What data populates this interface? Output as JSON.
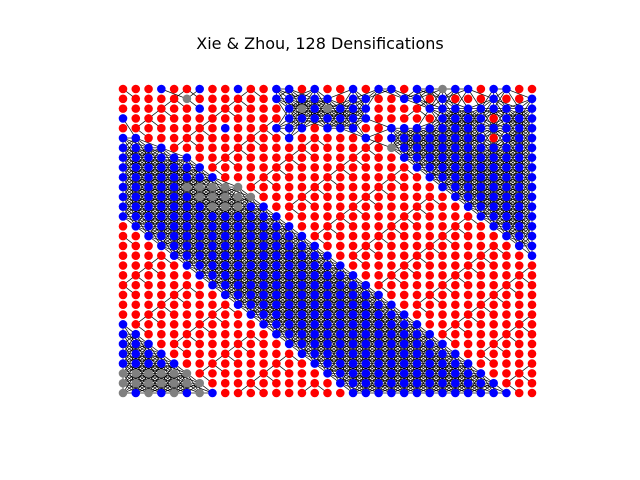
{
  "title": "Xie & Zhou, 128 Densifications",
  "graph": {
    "grid_columns": 33,
    "grid_rows": 32,
    "node_colors": {
      "red": "#ff0000",
      "blue": "#0000ff",
      "gray": "#808080"
    },
    "edge_color": "#000000",
    "node_color_rows": [
      "RRRBRRBRRBRRBBRBRRBRBBRBBGBBRBBRR",
      "RRRRRGRRRRRRBBBBBRBBRRBBRBRRRBRRB",
      "RRRRRRBRRRRRRBGBGBBBRRRRBBBBBBBBB",
      "BRRRRRRRRRRRRBBBBBBBRRRRRBBBBRBBB",
      "RRRRRRRRBRRRBBBRBBBRRBBBBBBBBBBBB",
      "BBRRRRRRRRRRRBRRRRRBRBBBBBBBBRBBB",
      "BBBBRRRRRRRRRRRRRRRRRGBBBBBBBBBBB",
      "BBBBBBRRRRRRRRRRRRRRRRBBBBBBBBBBB",
      "BBBBBBBRRRRRRRRRRRRRRRRBBBBBBBBBB",
      "BBBBBBBBRRRRRRRRRRRRRRRRBBBBBBBBB",
      "BBBBBGGGGGRRRRRRRRRRRRRRRBBBBBBBB",
      "BBBBBBGGGGGRRRRRRRRRRRRRRRBBBBBBB",
      "BBBBBBBGGGBBRRRRRRRRRRRRRRRBBBBBB",
      "BBBBBBBBBBBBBRRRRRRRRRRRRRRRBBBBB",
      "RBBBBBBBBBBBBBRRRRRRRRRRRRRRRBBBB",
      "RRBBBBBBBBBBBBBRRRRRRRRRRRRRRRBBB",
      "RRRBBBBBBBBBBBBBRRRRRRRRRRRRRRRBB",
      "RRRRBBBBBBBBBBBBBRRRRRRRRRRRRRRRB",
      "RRRRRBBBBBBBBBBBBBRRRRRRRRRRRRRRR",
      "RRRRRRBBBBBBBBBBBBBRRRRRRRRRRRRRR",
      "RRRRRRRBBBBBBBBBBBBBRRRRRRRRRRRRR",
      "RRRRRRRRBBBBBBBBBBBBBRRRRRRRRRRRR",
      "RRRRRRRRRBBBBBBBBBBBBBRRRRRRRRRRR",
      "RRRRRRRRRRBBBBBBBBBBBBBRRRRRRRRRR",
      "BRRRRRRRRRRBBBBBBBBBBBBBRRRRRRRRR",
      "BBRRRRRRRRRRBBBBBBBBBBBBBRRRRRRRR",
      "BBBRRRRRRRRRRBBBBBBBBBBBBBRRRRRRR",
      "BBBBRRRRRRRRRRBBBBBBBBBBBBBRRRRRR",
      "BBBBBRRRRRRRRRRBBBBBBBBBBBBBRRRRR",
      "GGGGGGRRRRRRRRRRBBBBBBBBBBBBBRRRR",
      "GGGGGGGRRRRRRRRRRBBBBBBBBBBBBBRRR",
      "GBGBGBGBRRRRRRRRRRBBBBBBBBBBBBBRR"
    ]
  }
}
